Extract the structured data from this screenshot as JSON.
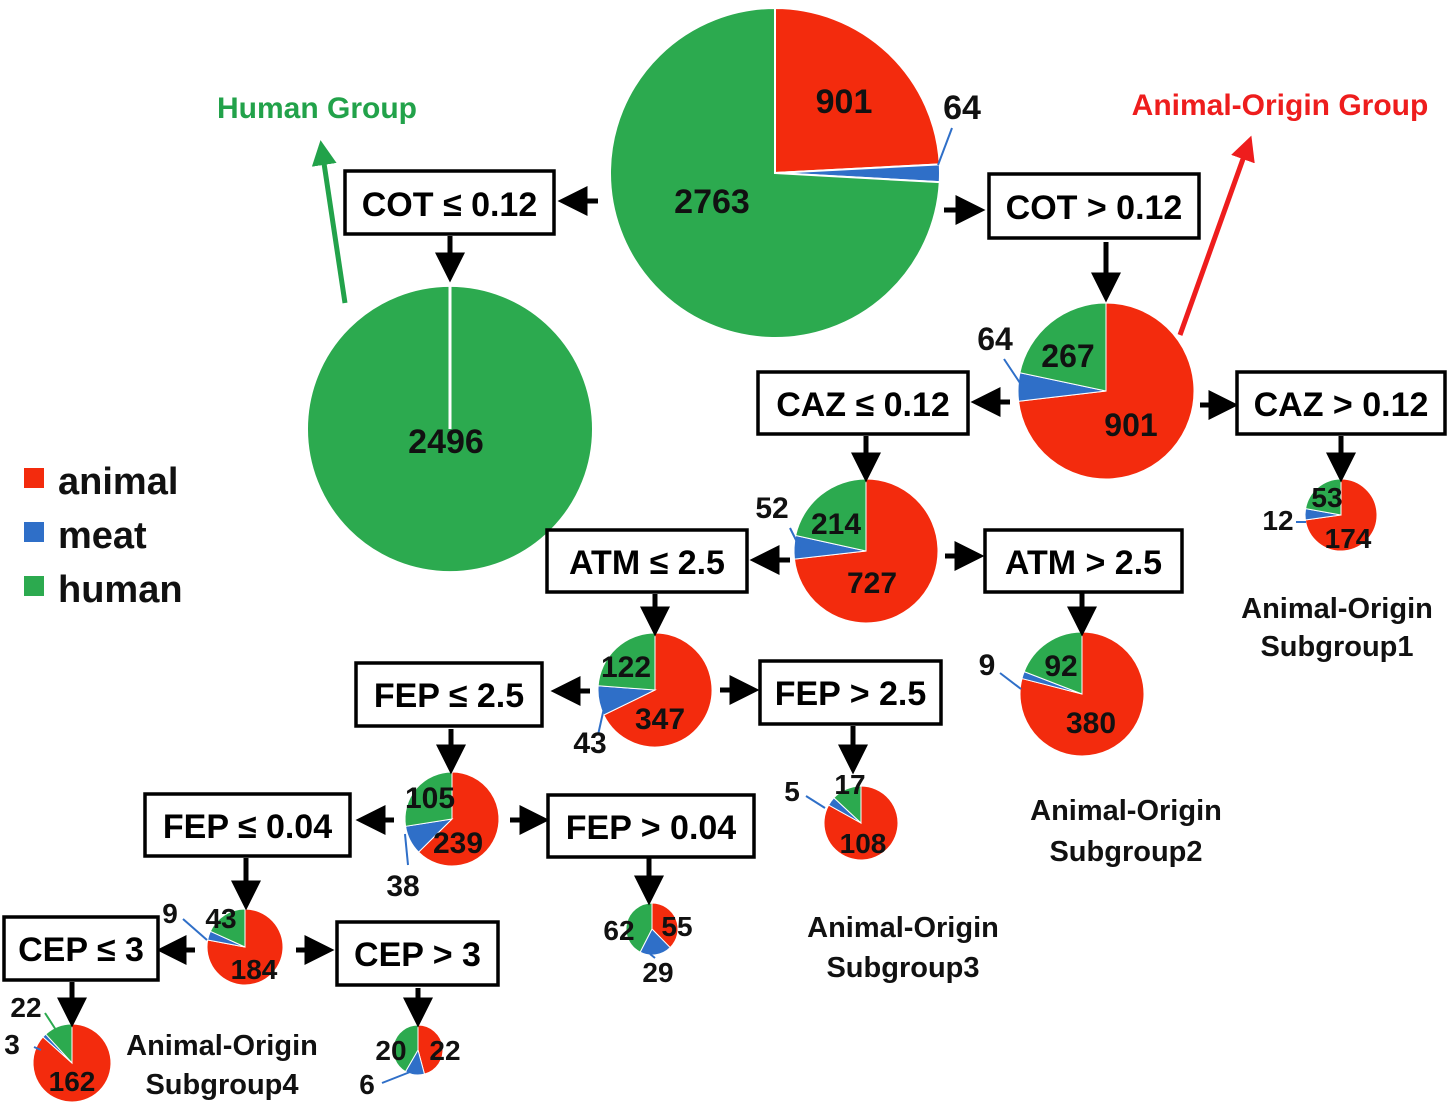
{
  "colors": {
    "animal": "#f32b0d",
    "meat": "#2f6fc8",
    "human": "#2caa4f",
    "human_group_label": "#22a24a",
    "animal_group_label": "#ee1d1d"
  },
  "legend": {
    "animal": "animal",
    "meat": "meat",
    "human": "human"
  },
  "groups": {
    "human": "Human Group",
    "animal_origin": "Animal-Origin Group"
  },
  "subgroups": {
    "s1_line1": "Animal-Origin",
    "s1_line2": "Subgroup1",
    "s2_line1": "Animal-Origin",
    "s2_line2": "Subgroup2",
    "s3_line1": "Animal-Origin",
    "s3_line2": "Subgroup3",
    "s4_line1": "Animal-Origin",
    "s4_line2": "Subgroup4"
  },
  "splits": {
    "cot_le": "COT ≤ 0.12",
    "cot_gt": "COT > 0.12",
    "caz_le": "CAZ ≤ 0.12",
    "caz_gt": "CAZ > 0.12",
    "atm_le": "ATM ≤ 2.5",
    "atm_gt": "ATM > 2.5",
    "fep25_le": "FEP ≤ 2.5",
    "fep25_gt": "FEP > 2.5",
    "fep004_le": "FEP ≤ 0.04",
    "fep004_gt": "FEP > 0.04",
    "cep_le": "CEP ≤ 3",
    "cep_gt": "CEP > 3"
  },
  "chart_data": {
    "type": "pie",
    "title": "",
    "series_order": [
      "animal",
      "meat",
      "human"
    ],
    "nodes": [
      {
        "id": "root",
        "animal": 901,
        "meat": 64,
        "human": 2763,
        "labels": {
          "animal": "901",
          "meat": "64",
          "human": "2763"
        }
      },
      {
        "id": "human_group",
        "animal": 0,
        "meat": 0,
        "human": 2496,
        "labels": {
          "human": "2496"
        }
      },
      {
        "id": "cot_gt",
        "animal": 901,
        "meat": 64,
        "human": 267,
        "labels": {
          "animal": "901",
          "meat": "64",
          "human": "267"
        }
      },
      {
        "id": "caz_gt",
        "animal": 174,
        "meat": 12,
        "human": 53,
        "labels": {
          "animal": "174",
          "meat": "12",
          "human": "53"
        }
      },
      {
        "id": "caz_le",
        "animal": 727,
        "meat": 52,
        "human": 214,
        "labels": {
          "animal": "727",
          "meat": "52",
          "human": "214"
        }
      },
      {
        "id": "atm_gt",
        "animal": 380,
        "meat": 9,
        "human": 92,
        "labels": {
          "animal": "380",
          "meat": "9",
          "human": "92"
        }
      },
      {
        "id": "atm_le",
        "animal": 347,
        "meat": 43,
        "human": 122,
        "labels": {
          "animal": "347",
          "meat": "43",
          "human": "122"
        }
      },
      {
        "id": "fep25_gt",
        "animal": 108,
        "meat": 5,
        "human": 17,
        "labels": {
          "animal": "108",
          "meat": "5",
          "human": "17"
        }
      },
      {
        "id": "fep25_le",
        "animal": 239,
        "meat": 38,
        "human": 105,
        "labels": {
          "animal": "239",
          "meat": "38",
          "human": "105"
        }
      },
      {
        "id": "fep004_gt",
        "animal": 55,
        "meat": 29,
        "human": 62,
        "labels": {
          "animal": "55",
          "meat": "29",
          "human": "62"
        }
      },
      {
        "id": "fep004_le",
        "animal": 184,
        "meat": 9,
        "human": 43,
        "labels": {
          "animal": "184",
          "meat": "9",
          "human": "43"
        }
      },
      {
        "id": "cep_le",
        "animal": 162,
        "meat": 3,
        "human": 22,
        "labels": {
          "animal": "162",
          "meat": "3",
          "human": "22"
        }
      },
      {
        "id": "cep_gt",
        "animal": 22,
        "meat": 6,
        "human": 20,
        "labels": {
          "animal": "22",
          "meat": "6",
          "human": "20"
        }
      }
    ]
  }
}
